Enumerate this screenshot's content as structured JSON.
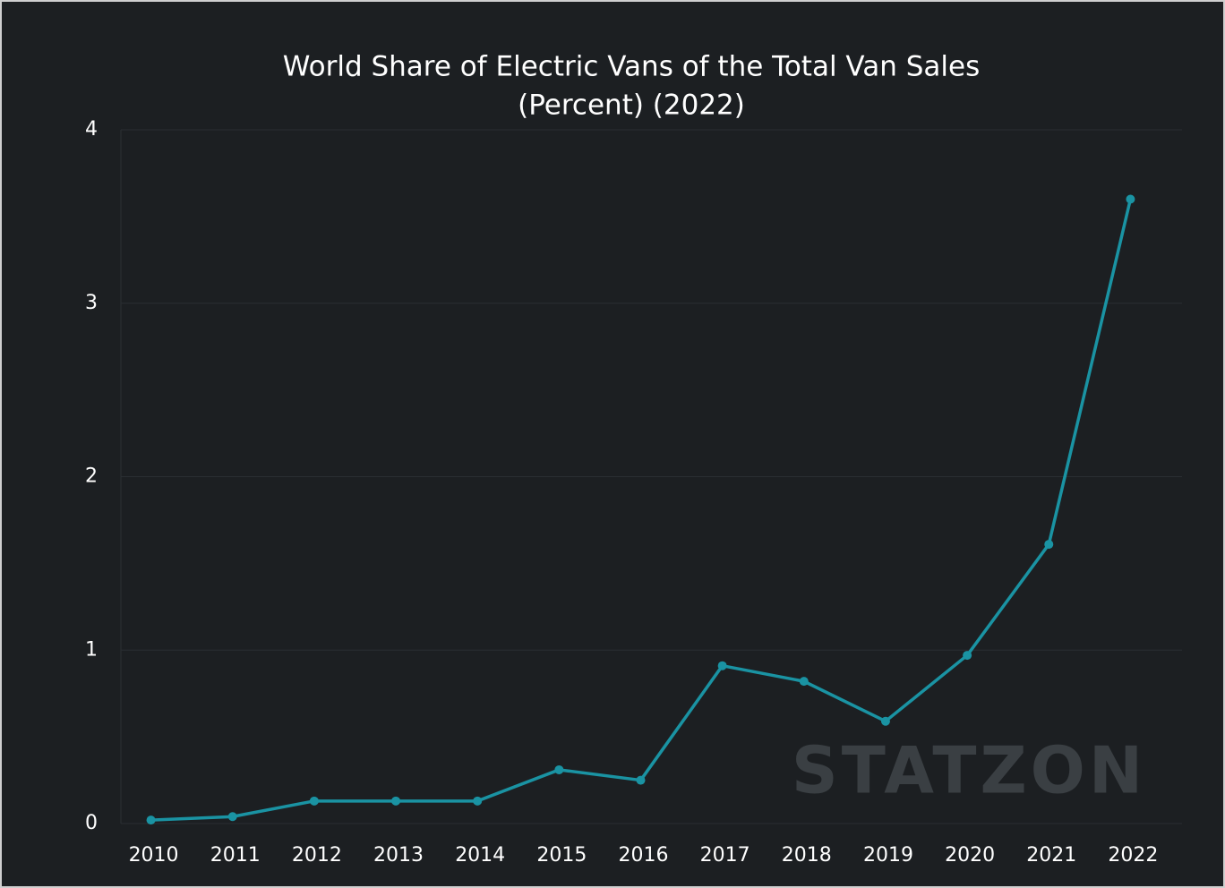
{
  "chart_data": {
    "type": "line",
    "title": "World Share of Electric Vans of the Total Van Sales",
    "subtitle": "(Percent) (2022)",
    "categories": [
      "2010",
      "2011",
      "2012",
      "2013",
      "2014",
      "2015",
      "2016",
      "2017",
      "2018",
      "2019",
      "2020",
      "2021",
      "2022"
    ],
    "values": [
      0.02,
      0.04,
      0.13,
      0.13,
      0.13,
      0.31,
      0.25,
      0.91,
      0.82,
      0.59,
      0.97,
      1.61,
      3.6
    ],
    "color": "#1a93a3",
    "ylim": [
      0,
      4
    ],
    "yticks": [
      0,
      1,
      2,
      3,
      4
    ],
    "grid": true,
    "watermark": "STATZON"
  }
}
